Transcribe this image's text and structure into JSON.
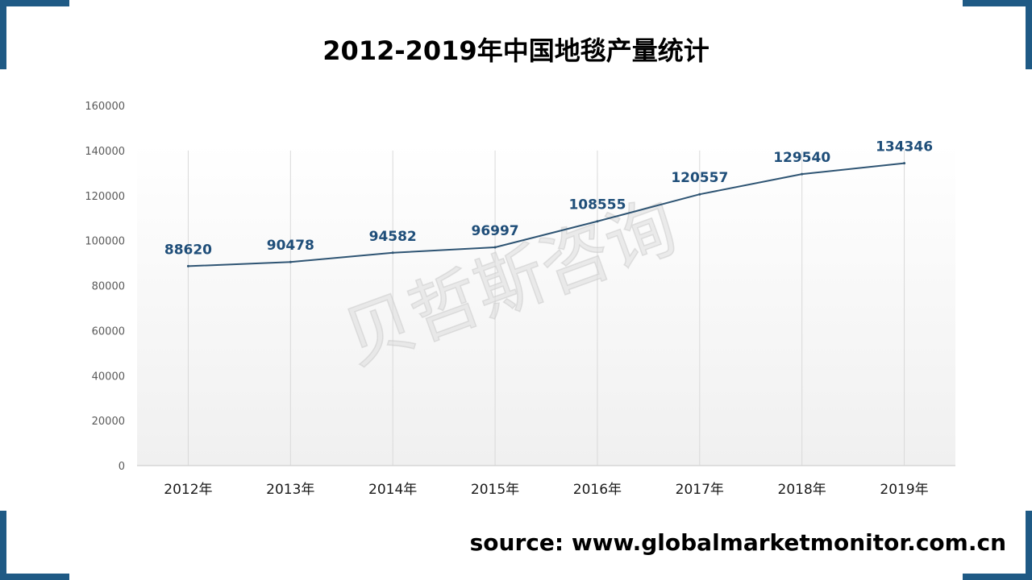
{
  "title": "2012-2019年中国地毯产量统计",
  "source": "source: www.globalmarketmonitor.com.cn",
  "watermark": "贝哲斯咨询",
  "colors": {
    "line": "#2e5473",
    "label": "#1f4e79",
    "corner": "#1f5a85",
    "axis_text": "#595959",
    "grid": "#d9d9d9"
  },
  "chart_data": {
    "type": "line",
    "categories": [
      "2012年",
      "2013年",
      "2014年",
      "2015年",
      "2016年",
      "2017年",
      "2018年",
      "2019年"
    ],
    "values": [
      88620,
      90478,
      94582,
      96997,
      108555,
      120557,
      129540,
      134346
    ],
    "data_labels": [
      "88620",
      "90478",
      "94582",
      "96997",
      "108555",
      "120557",
      "129540",
      "134346"
    ],
    "ylim": [
      0,
      160000
    ],
    "y_ticks": [
      "0",
      "20000",
      "40000",
      "60000",
      "80000",
      "100000",
      "120000",
      "140000",
      "160000"
    ],
    "xlabel": "",
    "ylabel": "",
    "vertical_gridlines": true,
    "legend": "none"
  }
}
